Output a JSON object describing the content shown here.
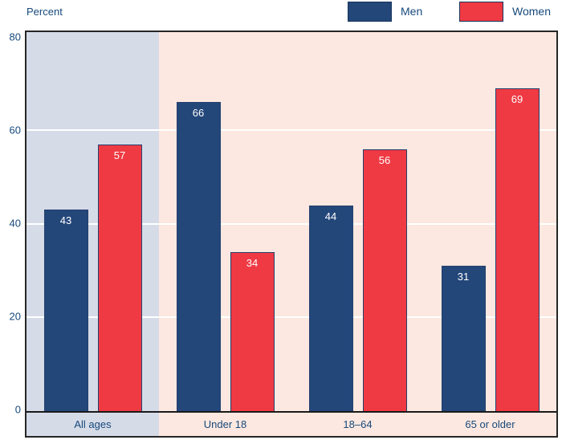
{
  "chart_data": {
    "type": "bar",
    "title": "",
    "ylabel": "Percent",
    "xlabel": "",
    "categories": [
      "All ages",
      "Under 18",
      "18–64",
      "65 or older"
    ],
    "series": [
      {
        "name": "Men",
        "color": "#24477A",
        "values": [
          43,
          66,
          44,
          31
        ]
      },
      {
        "name": "Women",
        "color": "#EF3A44",
        "values": [
          57,
          34,
          56,
          69
        ]
      }
    ],
    "ylim": [
      0,
      80
    ],
    "yticks": [
      "0",
      "20",
      "40",
      "60",
      "80"
    ],
    "gridline_values": [
      20,
      40,
      60
    ],
    "grid": "on",
    "legend_position": "top-right",
    "bar_labels_shown": true,
    "section_backgrounds": [
      "#D6DBE8",
      "#FCE8E0",
      "#FCE8E0",
      "#FCE8E0"
    ],
    "colors": {
      "axis_text": "#17497B",
      "bar_border": "#25406E",
      "frame_border": "#262626",
      "baseline": "#1a1a1a",
      "gridline": "#FFFFFF",
      "bar_value_text": "#FFFFFF"
    }
  }
}
